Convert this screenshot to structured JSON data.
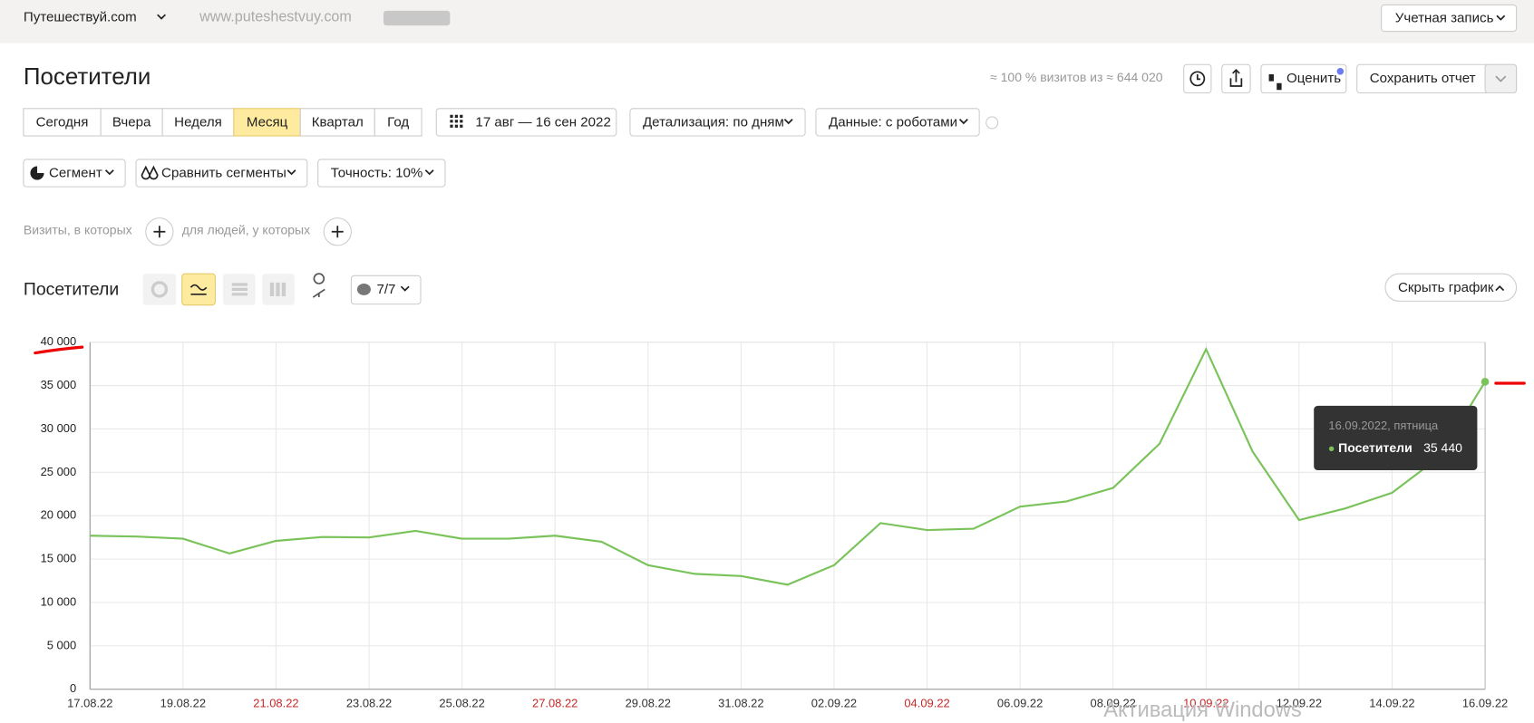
{
  "header": {
    "site": "Путешествуй.com",
    "url": "www.puteshestvuy.com",
    "account": "Учетная запись"
  },
  "page": {
    "title": "Посетители",
    "sample_note": "≈ 100 % визитов из ≈ 644 020",
    "rate": "Оценить",
    "save": "Сохранить отчет"
  },
  "periods": {
    "items": [
      "Сегодня",
      "Вчера",
      "Неделя",
      "Месяц",
      "Квартал",
      "Год"
    ],
    "selected": 3
  },
  "date_range": "17 авг — 16 сен 2022",
  "detail": "Детализация: по дням",
  "data_mode": "Данные: с роботами",
  "filters": {
    "segment": "Сегмент",
    "compare": "Сравнить сегменты",
    "accuracy": "Точность: 10%"
  },
  "conditions": {
    "visits": "Визиты, в которых",
    "people": "для людей, у которых"
  },
  "report": {
    "title": "Посетители",
    "annotations": "7/7",
    "hide": "Скрыть график"
  },
  "watermark": "Активация Windows",
  "chart_data": {
    "type": "line",
    "categories": [
      "17.08.22",
      null,
      "19.08.22",
      null,
      "21.08.22",
      null,
      "23.08.22",
      null,
      "25.08.22",
      null,
      "27.08.22",
      null,
      "29.08.22",
      null,
      "31.08.22",
      null,
      "02.09.22",
      null,
      "04.09.22",
      null,
      "06.09.22",
      null,
      "08.09.22",
      null,
      "10.09.22",
      null,
      "12.09.22",
      null,
      "14.09.22",
      null,
      "16.09.22"
    ],
    "category_colors": [
      "#333333",
      null,
      "#333333",
      null,
      "#c62828",
      null,
      "#333333",
      null,
      "#333333",
      null,
      "#c62828",
      null,
      "#333333",
      null,
      "#333333",
      null,
      "#333333",
      null,
      "#c62828",
      null,
      "#333333",
      null,
      "#333333",
      null,
      "#c62828",
      null,
      "#333333",
      null,
      "#333333",
      null,
      "#333333"
    ],
    "series": [
      {
        "name": "Посетители",
        "color": "#7ac35a",
        "values": [
          17700,
          17600,
          17350,
          15650,
          17100,
          17550,
          17500,
          18250,
          17350,
          17350,
          17700,
          17000,
          14300,
          13300,
          13050,
          12050,
          14300,
          19150,
          18350,
          18500,
          21050,
          21650,
          23200,
          28300,
          39200,
          27400,
          19500,
          20850,
          22650,
          26700,
          35440
        ],
        "value_labels": [
          null,
          null,
          null,
          null,
          null,
          null,
          null,
          null,
          null,
          null,
          null,
          null,
          null,
          null,
          null,
          null,
          null,
          null,
          null,
          null,
          null,
          null,
          null,
          null,
          null,
          null,
          null,
          null,
          null,
          null,
          "35 440"
        ]
      }
    ],
    "tooltip": "16.09.2022, пятница",
    "ylim": [
      0,
      40000
    ],
    "yticks": [
      0,
      {
        "value": 5000,
        "label": "5 000"
      },
      {
        "value": 10000,
        "label": "10 000"
      },
      {
        "value": 15000,
        "label": "15 000"
      },
      {
        "value": 20000,
        "label": "20 000"
      },
      {
        "value": 25000,
        "label": "25 000"
      },
      {
        "value": 30000,
        "label": "30 000"
      },
      {
        "value": 35000,
        "label": "35 000"
      },
      {
        "value": 40000,
        "label": "40 000"
      }
    ],
    "grid": true
  }
}
